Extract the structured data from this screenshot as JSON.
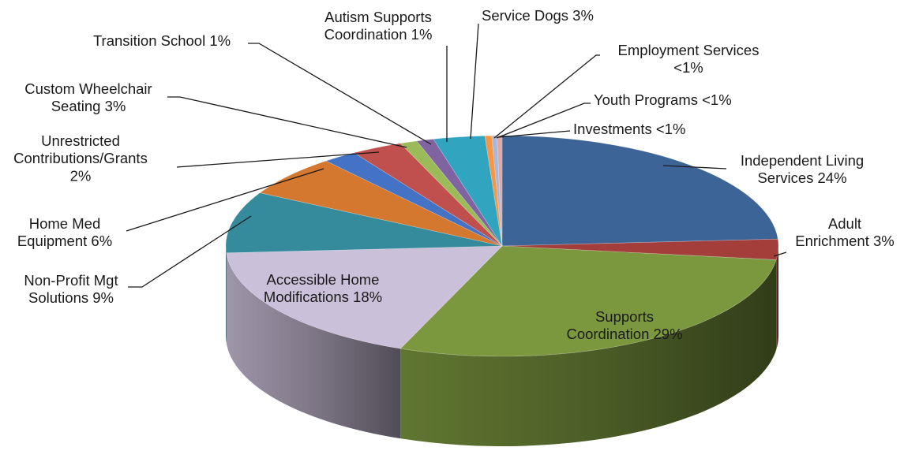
{
  "chart_data": {
    "type": "pie",
    "style": "3d-pie",
    "title": "",
    "slices": [
      {
        "key": "independent-living",
        "label_lines": [
          "Independent  Living",
          "Services 24%"
        ],
        "value": 24,
        "color": "#3c6496"
      },
      {
        "key": "adult-enrichment",
        "label_lines": [
          "Adult",
          "Enrichment 3%"
        ],
        "value": 3,
        "color": "#a33e3b"
      },
      {
        "key": "supports-coordination",
        "label_lines": [
          "Supports",
          "Coordination  29%"
        ],
        "value": 29,
        "color": "#7b983f"
      },
      {
        "key": "accessible-home-mods",
        "label_lines": [
          "Accessible Home",
          "Modifications 18%"
        ],
        "value": 18,
        "color": "#cbc0d9"
      },
      {
        "key": "non-profit-mgt",
        "label_lines": [
          "Non-Profit  Mgt",
          "Solutions 9%"
        ],
        "value": 9,
        "color": "#358a9b"
      },
      {
        "key": "home-med-equipment",
        "label_lines": [
          "Home Med",
          "Equipment 6%"
        ],
        "value": 6,
        "color": "#d4772f"
      },
      {
        "key": "unrestricted-contributions",
        "label_lines": [
          "Unrestricted",
          "Contributions/Grants",
          "2%"
        ],
        "value": 2,
        "color": "#4472c4"
      },
      {
        "key": "custom-wheelchair",
        "label_lines": [
          "Custom Wheelchair",
          "Seating 3%"
        ],
        "value": 3,
        "color": "#c0504d"
      },
      {
        "key": "transition-school",
        "label_lines": [
          "Transition  School 1%"
        ],
        "value": 1,
        "color": "#9bbb59"
      },
      {
        "key": "autism-supports",
        "label_lines": [
          "Autism Supports",
          "Coordination  1%"
        ],
        "value": 1,
        "color": "#8064a2"
      },
      {
        "key": "service-dogs",
        "label_lines": [
          "Service  Dogs 3%"
        ],
        "value": 3,
        "color": "#31a4c0"
      },
      {
        "key": "employment-services",
        "label_lines": [
          "Employment Services",
          "<1%"
        ],
        "value": 0.4,
        "color": "#f79646"
      },
      {
        "key": "youth-programs",
        "label_lines": [
          "Youth Programs <1%"
        ],
        "value": 0.3,
        "color": "#a8b8d8"
      },
      {
        "key": "investments",
        "label_lines": [
          "Investments  <1%"
        ],
        "value": 0.3,
        "color": "#e0a9a6"
      }
    ]
  }
}
